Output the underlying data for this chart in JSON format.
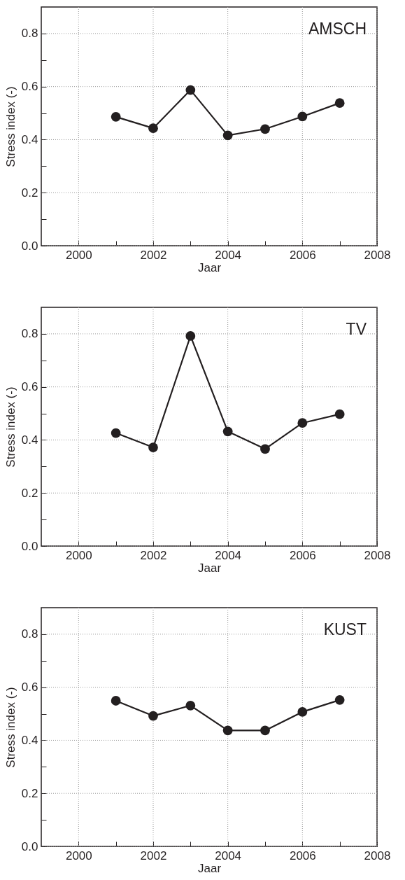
{
  "chart_data": [
    {
      "type": "line",
      "x": [
        2001,
        2002,
        2003,
        2004,
        2005,
        2006,
        2007
      ],
      "series": [
        {
          "color": "#231f20",
          "values": [
            0.486,
            0.443,
            0.587,
            0.416,
            0.44,
            0.487,
            0.538
          ]
        }
      ],
      "xlim": [
        1999,
        2008
      ],
      "xticks": [
        2000,
        {
          "value": 2001,
          "label": null
        },
        2002,
        {
          "value": 2003,
          "label": null
        },
        2004,
        {
          "value": 2005,
          "label": null
        },
        2006,
        {
          "value": 2007,
          "label": null
        },
        2008
      ],
      "ylim": [
        0,
        0.9
      ],
      "yticks": [
        {
          "value": 0,
          "label": "0.0"
        },
        {
          "value": 0.1,
          "label": null
        },
        0.2,
        {
          "value": 0.3,
          "label": null
        },
        0.4,
        {
          "value": 0.5,
          "label": null
        },
        0.6,
        {
          "value": 0.7,
          "label": null
        },
        0.8
      ],
      "xlabel": "Jaar",
      "ylabel": "Stress index (-)",
      "annotations": [
        "AMSCH"
      ],
      "grid": true,
      "marker": "circle",
      "line_style": "solid"
    },
    {
      "type": "line",
      "x": [
        2001,
        2002,
        2003,
        2004,
        2005,
        2006,
        2007
      ],
      "series": [
        {
          "color": "#231f20",
          "values": [
            0.426,
            0.372,
            0.792,
            0.432,
            0.366,
            0.464,
            0.497
          ]
        }
      ],
      "xlim": [
        1999,
        2008
      ],
      "xticks": [
        2000,
        {
          "value": 2001,
          "label": null
        },
        2002,
        {
          "value": 2003,
          "label": null
        },
        2004,
        {
          "value": 2005,
          "label": null
        },
        2006,
        {
          "value": 2007,
          "label": null
        },
        2008
      ],
      "ylim": [
        0,
        0.9
      ],
      "yticks": [
        {
          "value": 0,
          "label": "0.0"
        },
        {
          "value": 0.1,
          "label": null
        },
        0.2,
        {
          "value": 0.3,
          "label": null
        },
        0.4,
        {
          "value": 0.5,
          "label": null
        },
        0.6,
        {
          "value": 0.7,
          "label": null
        },
        0.8
      ],
      "xlabel": "Jaar",
      "ylabel": "Stress index (-)",
      "annotations": [
        "TV"
      ],
      "grid": true,
      "marker": "circle",
      "line_style": "solid"
    },
    {
      "type": "line",
      "x": [
        2001,
        2002,
        2003,
        2004,
        2005,
        2006,
        2007
      ],
      "series": [
        {
          "color": "#231f20",
          "values": [
            0.549,
            0.492,
            0.531,
            0.437,
            0.437,
            0.507,
            0.552
          ]
        }
      ],
      "xlim": [
        1999,
        2008
      ],
      "xticks": [
        2000,
        {
          "value": 2001,
          "label": null
        },
        2002,
        {
          "value": 2003,
          "label": null
        },
        2004,
        {
          "value": 2005,
          "label": null
        },
        2006,
        {
          "value": 2007,
          "label": null
        },
        2008
      ],
      "ylim": [
        0,
        0.9
      ],
      "yticks": [
        {
          "value": 0,
          "label": "0.0"
        },
        {
          "value": 0.1,
          "label": null
        },
        0.2,
        {
          "value": 0.3,
          "label": null
        },
        0.4,
        {
          "value": 0.5,
          "label": null
        },
        0.6,
        {
          "value": 0.7,
          "label": null
        },
        0.8
      ],
      "xlabel": "Jaar",
      "ylabel": "Stress index (-)",
      "annotations": [
        "KUST"
      ],
      "grid": true,
      "marker": "circle",
      "line_style": "solid"
    }
  ]
}
